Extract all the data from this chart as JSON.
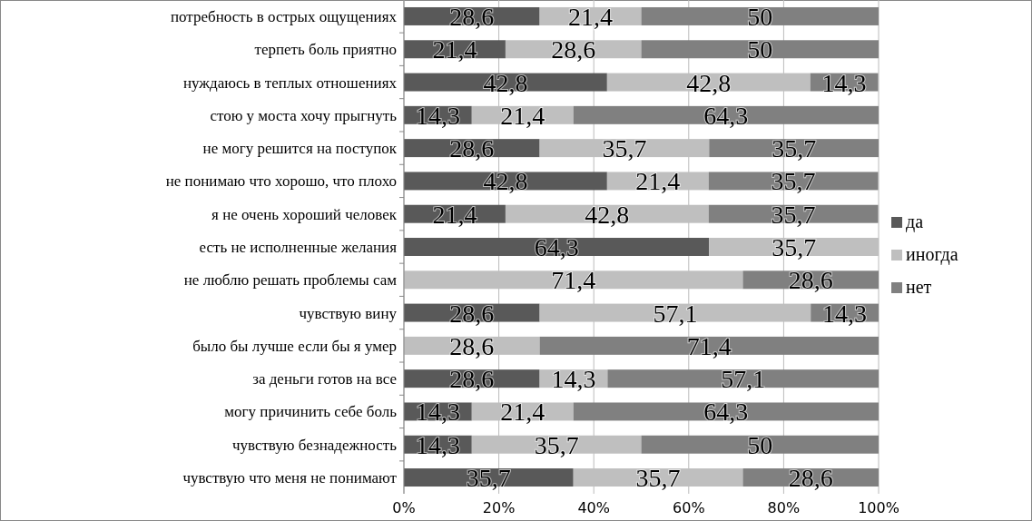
{
  "chart_data": {
    "type": "bar",
    "orientation": "horizontal",
    "stacked": true,
    "categories": [
      "потребность в острых ощущениях",
      "терпеть боль приятно",
      "нуждаюсь в теплых отношениях",
      "стою у моста хочу прыгнуть",
      "не могу решится на поступок",
      "не понимаю что хорошо, что плохо",
      "я не очень хороший человек",
      "есть не исполненные желания",
      "не люблю решать проблемы сам",
      "чувствую вину",
      "было бы лучше если бы я умер",
      "за деньги готов на все",
      "могу причинить себе боль",
      "чувствую безнадежность",
      "чувствую что меня не понимают"
    ],
    "series": [
      {
        "name": "да",
        "color": "#595959",
        "values": [
          28.6,
          21.4,
          42.8,
          14.3,
          28.6,
          42.8,
          21.4,
          64.3,
          null,
          28.6,
          null,
          28.6,
          14.3,
          14.3,
          35.7
        ],
        "value_labels": [
          "28,6",
          "21,4",
          "42,8",
          "14,3",
          "28,6",
          "42,8",
          "21,4",
          "64,3",
          null,
          "28,6",
          null,
          "28,6",
          "14,3",
          "14,3",
          "35,7"
        ]
      },
      {
        "name": "иногда",
        "color": "#bfbfbf",
        "values": [
          21.4,
          28.6,
          42.8,
          21.4,
          35.7,
          21.4,
          42.8,
          35.7,
          71.4,
          57.1,
          28.6,
          14.3,
          21.4,
          35.7,
          35.7
        ],
        "value_labels": [
          "21,4",
          "28,6",
          "42,8",
          "21,4",
          "35,7",
          "21,4",
          "42,8",
          "35,7",
          "71,4",
          "57,1",
          "28,6",
          "14,3",
          "21,4",
          "35,7",
          "35,7"
        ]
      },
      {
        "name": "нет",
        "color": "#808080",
        "values": [
          50,
          50,
          14.3,
          64.3,
          35.7,
          35.7,
          35.7,
          null,
          28.6,
          14.3,
          71.4,
          57.1,
          64.3,
          50,
          28.6
        ],
        "value_labels": [
          "50",
          "50",
          "14,3",
          "64,3",
          "35,7",
          "35,7",
          "35,7",
          null,
          "28,6",
          "14,3",
          "71,4",
          "57,1",
          "64,3",
          "50",
          "28,6"
        ]
      }
    ],
    "xlim": [
      0,
      100
    ],
    "xticks": [
      {
        "value": 0,
        "label": "0%"
      },
      {
        "value": 20,
        "label": "20%"
      },
      {
        "value": 40,
        "label": "40%"
      },
      {
        "value": 60,
        "label": "60%"
      },
      {
        "value": 80,
        "label": "80%"
      },
      {
        "value": 100,
        "label": "100%"
      }
    ],
    "grid": "x",
    "legend": "right"
  }
}
